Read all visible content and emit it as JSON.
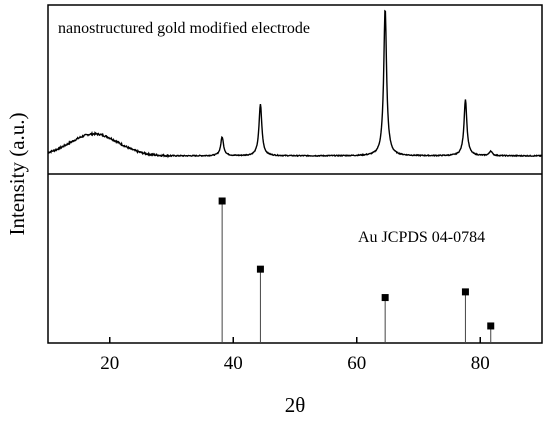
{
  "chart_data": {
    "type": "line",
    "xlabel": "2θ",
    "ylabel": "Intensity (a.u.)",
    "xlim": [
      10,
      90
    ],
    "x_ticks": [
      20,
      40,
      60,
      80
    ],
    "grid": false,
    "panels": [
      {
        "name": "nanostructured gold modified electrode",
        "kind": "xrd-pattern",
        "ylim": [
          0,
          1
        ],
        "peaks": [
          {
            "x": 38.2,
            "height": 0.12
          },
          {
            "x": 44.4,
            "height": 0.33
          },
          {
            "x": 64.6,
            "height": 0.94
          },
          {
            "x": 77.6,
            "height": 0.36
          },
          {
            "x": 81.7,
            "height": 0.03
          }
        ],
        "hump": {
          "center": 17.5,
          "height": 0.14,
          "width": 5.5
        },
        "baseline": 0.09
      },
      {
        "name": "Au JCPDS 04-0784",
        "kind": "stick-pattern",
        "ylim": [
          0,
          100
        ],
        "x": [
          38.2,
          44.4,
          64.6,
          77.6,
          81.7
        ],
        "values": [
          100,
          52,
          32,
          36,
          12
        ]
      }
    ]
  }
}
